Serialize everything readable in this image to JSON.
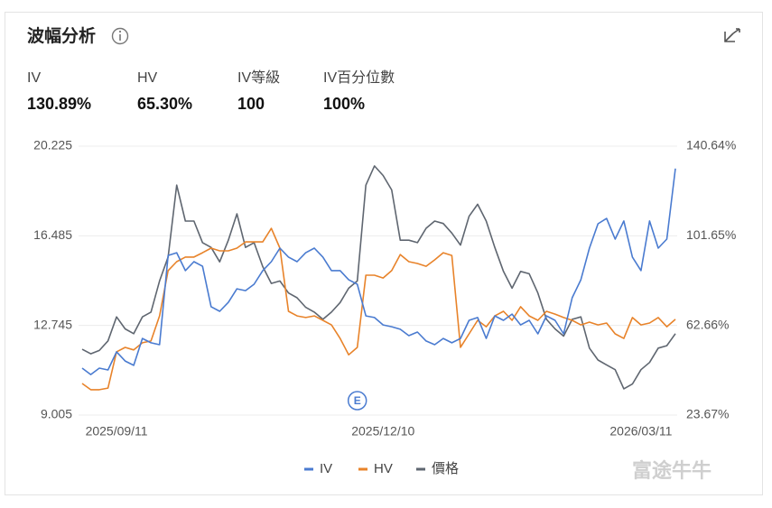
{
  "header": {
    "title": "波幅分析"
  },
  "stats": [
    {
      "label": "IV",
      "value": "130.89%"
    },
    {
      "label": "HV",
      "value": "65.30%"
    },
    {
      "label": "IV等級",
      "value": "100"
    },
    {
      "label": "IV百分位數",
      "value": "100%"
    }
  ],
  "watermark": "富途牛牛",
  "chart_data": {
    "type": "line",
    "categories": [
      null,
      null,
      null,
      null,
      "2025/09/11",
      null,
      null,
      null,
      null,
      null,
      null,
      null,
      null,
      null,
      null,
      null,
      null,
      null,
      null,
      null,
      null,
      null,
      null,
      null,
      null,
      null,
      null,
      null,
      null,
      null,
      null,
      null,
      null,
      null,
      null,
      "2025/12/10",
      null,
      null,
      null,
      null,
      null,
      null,
      null,
      null,
      null,
      null,
      null,
      null,
      null,
      null,
      null,
      null,
      null,
      null,
      null,
      null,
      null,
      null,
      null,
      null,
      null,
      null,
      null,
      null,
      null,
      "2026/03/11",
      null,
      null,
      null,
      null
    ],
    "ylim": [
      9.005,
      20.225
    ],
    "yticks": [
      9.005,
      12.745,
      16.485,
      20.225
    ],
    "y2lim": [
      23.67,
      140.64
    ],
    "y2ticks": [
      {
        "value": 23.67,
        "label": "23.67%"
      },
      {
        "value": 62.66,
        "label": "62.66%"
      },
      {
        "value": 101.65,
        "label": "101.65%"
      },
      {
        "value": 140.64,
        "label": "140.64%"
      }
    ],
    "grid": true,
    "annotations": [
      {
        "text": "E",
        "category": 32
      }
    ],
    "series": [
      {
        "name": "IV",
        "color": "#4a7bd0",
        "axis": "y2",
        "values": [
          44.1,
          41.3,
          44.1,
          43.3,
          51.2,
          47.2,
          45.3,
          57.0,
          55.1,
          54.3,
          93.1,
          94.3,
          86.5,
          90.4,
          88.4,
          70.8,
          68.8,
          72.7,
          78.6,
          77.8,
          80.6,
          86.5,
          90.4,
          96.3,
          92.4,
          90.4,
          94.3,
          96.3,
          92.4,
          86.5,
          86.5,
          82.5,
          80.6,
          66.8,
          66.1,
          62.9,
          62.1,
          61.0,
          58.2,
          59.8,
          55.9,
          54.3,
          57.0,
          55.1,
          57.0,
          64.9,
          66.1,
          57.0,
          66.8,
          64.9,
          67.6,
          62.9,
          64.9,
          59.0,
          66.8,
          64.9,
          59.0,
          74.7,
          82.5,
          96.3,
          106.9,
          109.2,
          100.2,
          108.1,
          92.4,
          86.5,
          108.1,
          96.3,
          100.2,
          130.89
        ]
      },
      {
        "name": "HV",
        "color": "#e8832a",
        "axis": "y2",
        "values": [
          37.4,
          34.7,
          34.7,
          35.4,
          51.2,
          53.1,
          52.0,
          55.1,
          55.9,
          66.8,
          86.5,
          90.4,
          92.4,
          92.4,
          94.3,
          96.3,
          95.1,
          95.1,
          96.3,
          99.0,
          99.0,
          99.0,
          104.9,
          96.3,
          68.8,
          66.8,
          66.1,
          66.8,
          64.9,
          62.9,
          57.0,
          49.9,
          53.1,
          84.5,
          84.5,
          83.3,
          86.5,
          93.5,
          90.4,
          89.6,
          88.4,
          91.2,
          94.3,
          93.1,
          53.1,
          59.0,
          64.9,
          62.1,
          66.8,
          68.8,
          64.9,
          70.8,
          66.8,
          64.9,
          68.8,
          67.6,
          66.1,
          64.9,
          62.9,
          64.1,
          62.9,
          63.7,
          59.0,
          57.0,
          66.1,
          62.9,
          63.7,
          66.1,
          62.1,
          65.3
        ]
      },
      {
        "name": "價格",
        "color": "#5f6670",
        "values": [
          11.75,
          11.56,
          11.7,
          12.1,
          13.1,
          12.6,
          12.4,
          13.1,
          13.3,
          14.6,
          15.6,
          18.6,
          17.1,
          17.1,
          16.2,
          16.0,
          15.4,
          16.3,
          17.4,
          16.0,
          16.2,
          15.2,
          14.5,
          14.6,
          14.1,
          13.9,
          13.5,
          13.3,
          13.0,
          13.3,
          13.7,
          14.3,
          14.6,
          18.6,
          19.4,
          19.0,
          18.4,
          16.3,
          16.3,
          16.2,
          16.8,
          17.1,
          17.0,
          16.6,
          16.1,
          17.3,
          17.8,
          17.1,
          16.0,
          15.0,
          14.3,
          15.0,
          14.9,
          14.1,
          13.0,
          12.6,
          12.3,
          13.0,
          13.1,
          11.8,
          11.3,
          11.1,
          10.9,
          10.1,
          10.3,
          10.9,
          11.2,
          11.8,
          11.9,
          12.4
        ]
      }
    ]
  }
}
